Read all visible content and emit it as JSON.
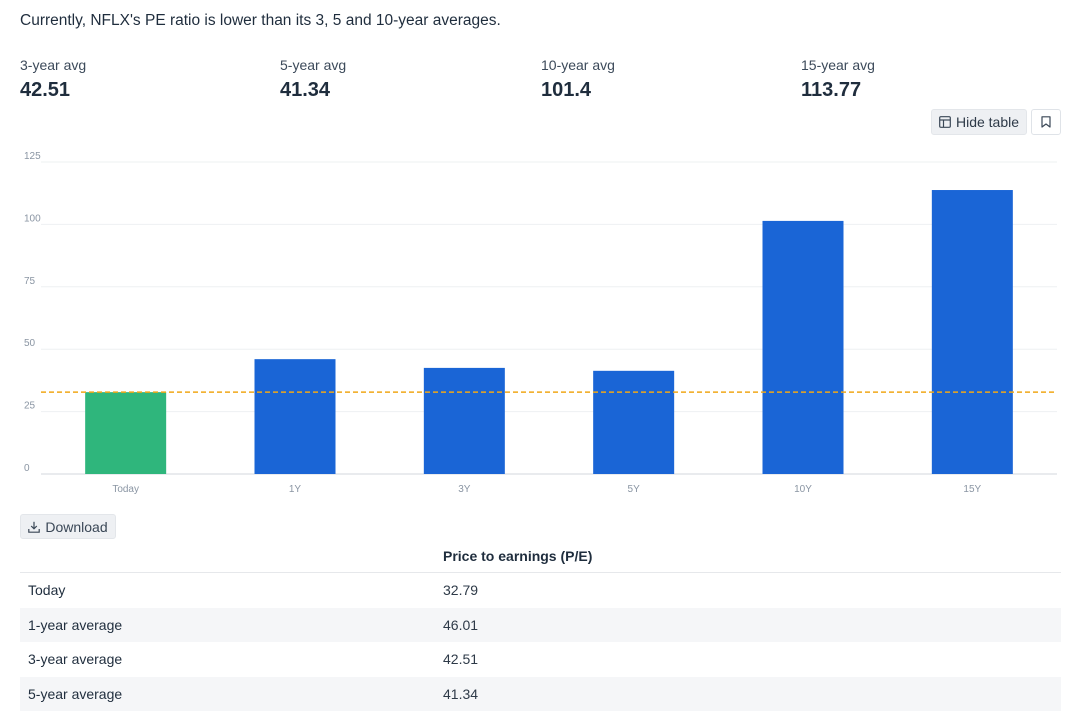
{
  "headline": "Currently, NFLX's PE ratio is lower than its 3, 5 and 10-year averages.",
  "stats": [
    {
      "label": "3-year avg",
      "value": "42.51"
    },
    {
      "label": "5-year avg",
      "value": "41.34"
    },
    {
      "label": "10-year avg",
      "value": "101.4"
    },
    {
      "label": "15-year avg",
      "value": "113.77"
    }
  ],
  "buttons": {
    "hide_table": "Hide table",
    "download": "Download"
  },
  "icons": {
    "hide_table": "table-icon",
    "bookmark": "bookmark-icon",
    "download": "download-icon"
  },
  "colors": {
    "today_bar": "#2fb67c",
    "avg_bar": "#1a65d6",
    "reference_line": "#f0a818"
  },
  "chart_data": {
    "type": "bar",
    "categories": [
      "Today",
      "1Y",
      "3Y",
      "5Y",
      "10Y",
      "15Y"
    ],
    "values": [
      32.79,
      46.01,
      42.51,
      41.34,
      101.4,
      113.77
    ],
    "ylim": [
      0,
      125
    ],
    "yticks": [
      0,
      25,
      50,
      75,
      100,
      125
    ],
    "reference_line": 32.79,
    "grid": true,
    "title": "",
    "xlabel": "",
    "ylabel": ""
  },
  "table": {
    "header": "Price to earnings (P/E)",
    "rows": [
      {
        "label": "Today",
        "value": "32.79"
      },
      {
        "label": "1-year average",
        "value": "46.01"
      },
      {
        "label": "3-year average",
        "value": "42.51"
      },
      {
        "label": "5-year average",
        "value": "41.34"
      }
    ]
  }
}
